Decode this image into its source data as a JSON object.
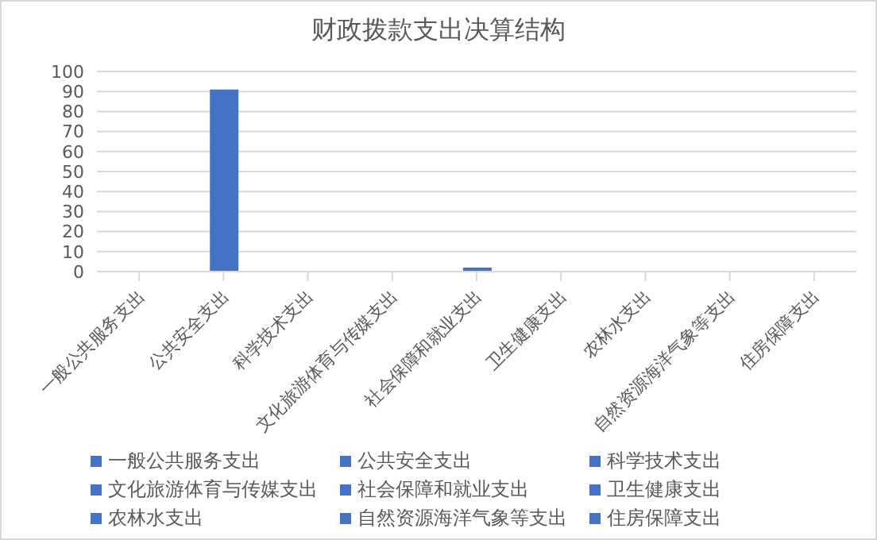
{
  "chart_data": {
    "type": "bar",
    "title": "财政拨款支出决算结构",
    "stacked": true,
    "categories": [
      "一般公共服务支出",
      "公共安全支出",
      "科学技术支出",
      "文化旅游体育与传媒支出",
      "社会保障和就业支出",
      "卫生健康支出",
      "农林水支出",
      "自然资源海洋气象等支出",
      "住房保障支出"
    ],
    "series": [
      {
        "name": "一般公共服务支出",
        "color": "#4472c4",
        "values": [
          0,
          null,
          null,
          null,
          null,
          null,
          null,
          null,
          null
        ]
      },
      {
        "name": "公共安全支出",
        "color": "#4472c4",
        "values": [
          null,
          91,
          null,
          null,
          null,
          null,
          null,
          null,
          null
        ]
      },
      {
        "name": "科学技术支出",
        "color": "#4472c4",
        "values": [
          null,
          null,
          0,
          null,
          null,
          null,
          null,
          null,
          null
        ]
      },
      {
        "name": "文化旅游体育与传媒支出",
        "color": "#4472c4",
        "values": [
          null,
          null,
          null,
          0,
          null,
          null,
          null,
          null,
          null
        ]
      },
      {
        "name": "社会保障和就业支出",
        "color": "#4472c4",
        "values": [
          null,
          null,
          null,
          null,
          2,
          null,
          null,
          null,
          null
        ]
      },
      {
        "name": "卫生健康支出",
        "color": "#4472c4",
        "values": [
          null,
          null,
          null,
          null,
          null,
          0,
          null,
          null,
          null
        ]
      },
      {
        "name": "农林水支出",
        "color": "#4472c4",
        "values": [
          null,
          null,
          null,
          null,
          null,
          null,
          0,
          null,
          null
        ]
      },
      {
        "name": "自然资源海洋气象等支出",
        "color": "#4472c4",
        "values": [
          null,
          null,
          null,
          null,
          null,
          null,
          null,
          0,
          null
        ]
      },
      {
        "name": "住房保障支出",
        "color": "#4472c4",
        "values": [
          null,
          null,
          null,
          null,
          null,
          null,
          null,
          null,
          0
        ]
      }
    ],
    "ylim": [
      0,
      100
    ],
    "yticks": [
      0,
      10,
      20,
      30,
      40,
      50,
      60,
      70,
      80,
      90,
      100
    ],
    "grid": "y",
    "legend": "bottom"
  }
}
